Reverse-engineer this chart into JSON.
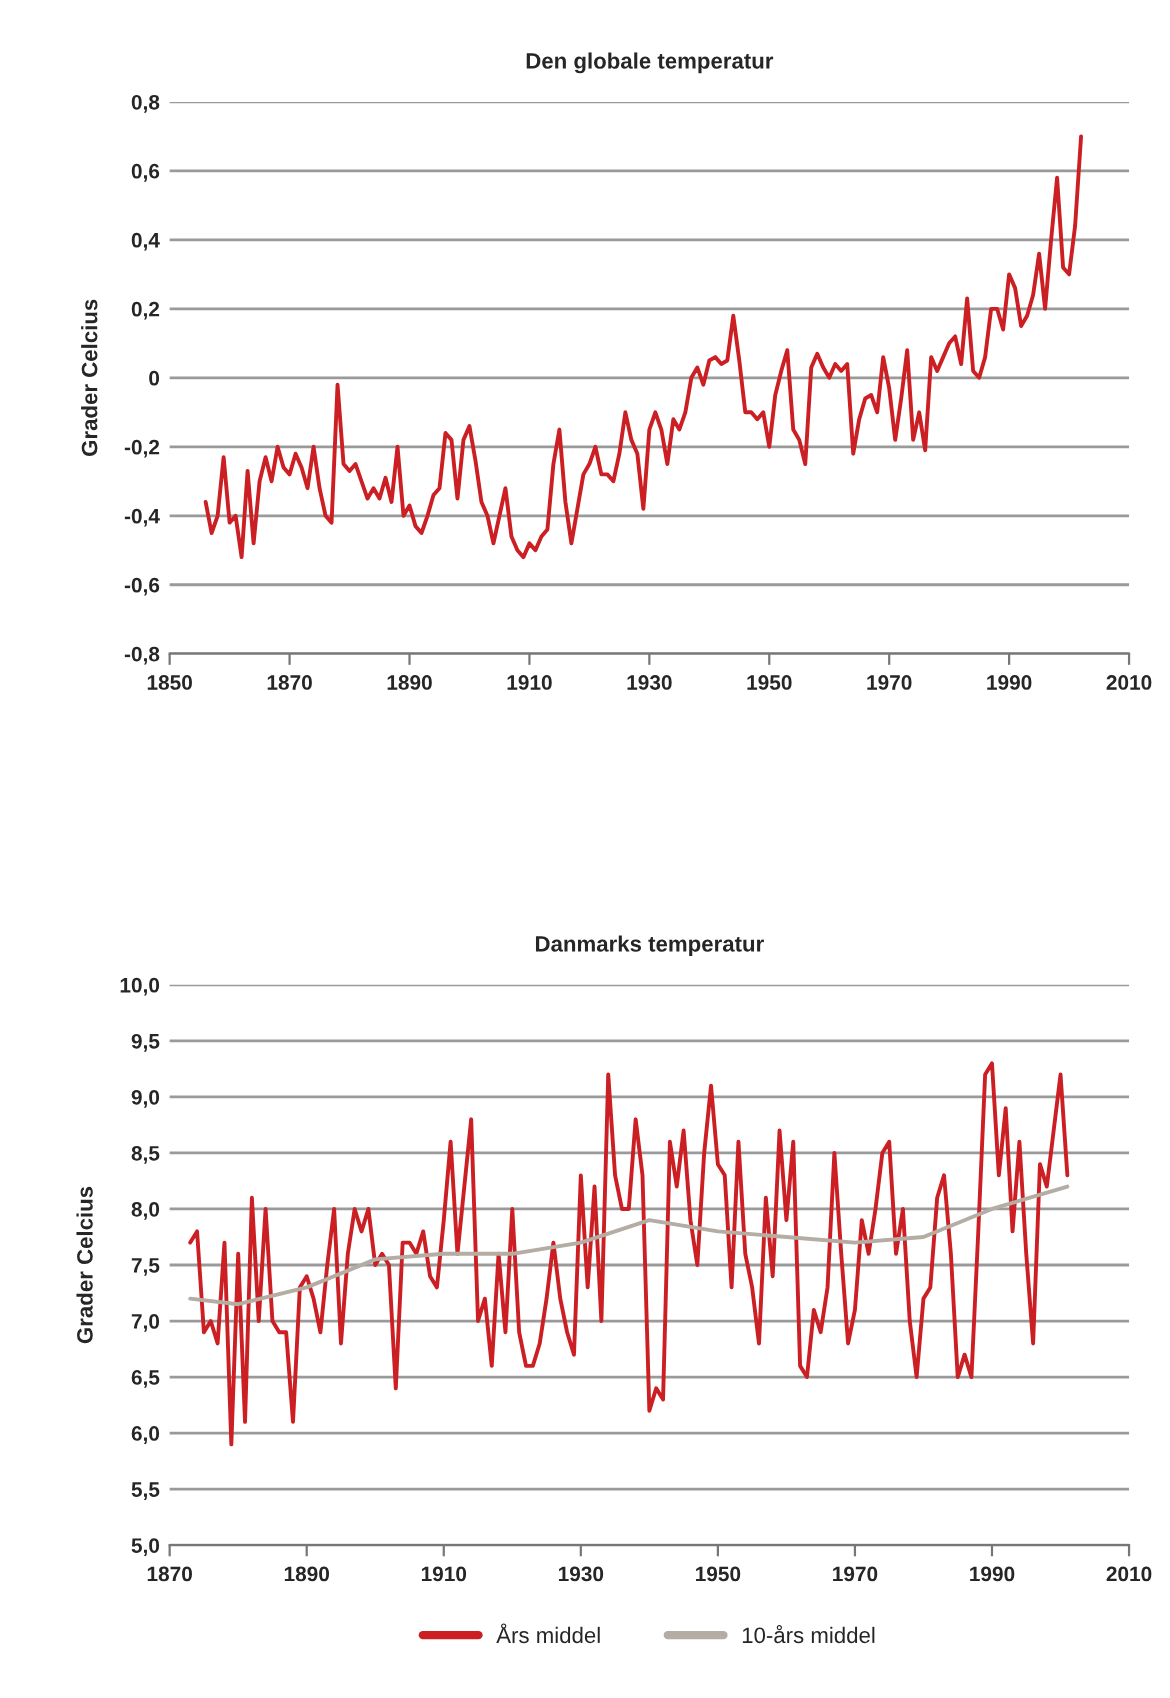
{
  "chart_data": [
    {
      "type": "line",
      "title": "Den globale temperatur",
      "ylabel": "Grader Celcius",
      "grid": "y",
      "line_style": "solid",
      "marker": "none",
      "xlim": [
        1850,
        2010
      ],
      "xticks": [
        1850,
        1870,
        1890,
        1910,
        1930,
        1950,
        1970,
        1990,
        2010
      ],
      "ylim": [
        -0.8,
        0.8
      ],
      "yticks": [
        {
          "value": -0.8,
          "label": "-0,8"
        },
        {
          "value": -0.6,
          "label": "-0,6"
        },
        {
          "value": -0.4,
          "label": "-0,4"
        },
        {
          "value": -0.2,
          "label": "-0,2"
        },
        0,
        {
          "value": 0.2,
          "label": "0,2"
        },
        {
          "value": 0.4,
          "label": "0,4"
        },
        {
          "value": 0.6,
          "label": "0,6"
        },
        {
          "value": 0.8,
          "label": "0,8"
        }
      ],
      "series": [
        {
          "color": "#cc1f24",
          "x": [
            1856,
            1857,
            1858,
            1859,
            1860,
            1861,
            1862,
            1863,
            1864,
            1865,
            1866,
            1867,
            1868,
            1869,
            1870,
            1871,
            1872,
            1873,
            1874,
            1875,
            1876,
            1877,
            1878,
            1879,
            1880,
            1881,
            1882,
            1883,
            1884,
            1885,
            1886,
            1887,
            1888,
            1889,
            1890,
            1891,
            1892,
            1893,
            1894,
            1895,
            1896,
            1897,
            1898,
            1899,
            1900,
            1901,
            1902,
            1903,
            1904,
            1905,
            1906,
            1907,
            1908,
            1909,
            1910,
            1911,
            1912,
            1913,
            1914,
            1915,
            1916,
            1917,
            1918,
            1919,
            1920,
            1921,
            1922,
            1923,
            1924,
            1925,
            1926,
            1927,
            1928,
            1929,
            1930,
            1931,
            1932,
            1933,
            1934,
            1935,
            1936,
            1937,
            1938,
            1939,
            1940,
            1941,
            1942,
            1943,
            1944,
            1945,
            1946,
            1947,
            1948,
            1949,
            1950,
            1951,
            1952,
            1953,
            1954,
            1955,
            1956,
            1957,
            1958,
            1959,
            1960,
            1961,
            1962,
            1963,
            1964,
            1965,
            1966,
            1967,
            1968,
            1969,
            1970,
            1971,
            1972,
            1973,
            1974,
            1975,
            1976,
            1977,
            1978,
            1979,
            1980,
            1981,
            1982,
            1983,
            1984,
            1985,
            1986,
            1987,
            1988,
            1989,
            1990,
            1991,
            1992,
            1993,
            1994,
            1995,
            1996,
            1997,
            1998,
            1999,
            2000,
            2001,
            2002
          ],
          "values": [
            -0.36,
            -0.45,
            -0.4,
            -0.23,
            -0.42,
            -0.4,
            -0.52,
            -0.27,
            -0.48,
            -0.3,
            -0.23,
            -0.3,
            -0.2,
            -0.26,
            -0.28,
            -0.22,
            -0.26,
            -0.32,
            -0.2,
            -0.32,
            -0.4,
            -0.42,
            -0.02,
            -0.25,
            -0.27,
            -0.25,
            -0.3,
            -0.35,
            -0.32,
            -0.35,
            -0.29,
            -0.36,
            -0.2,
            -0.4,
            -0.37,
            -0.43,
            -0.45,
            -0.4,
            -0.34,
            -0.32,
            -0.16,
            -0.18,
            -0.35,
            -0.18,
            -0.14,
            -0.24,
            -0.36,
            -0.4,
            -0.48,
            -0.4,
            -0.32,
            -0.46,
            -0.5,
            -0.52,
            -0.48,
            -0.5,
            -0.46,
            -0.44,
            -0.25,
            -0.15,
            -0.36,
            -0.48,
            -0.38,
            -0.28,
            -0.25,
            -0.2,
            -0.28,
            -0.28,
            -0.3,
            -0.22,
            -0.1,
            -0.18,
            -0.22,
            -0.38,
            -0.15,
            -0.1,
            -0.15,
            -0.25,
            -0.12,
            -0.15,
            -0.1,
            0.0,
            0.03,
            -0.02,
            0.05,
            0.06,
            0.04,
            0.05,
            0.18,
            0.05,
            -0.1,
            -0.1,
            -0.12,
            -0.1,
            -0.2,
            -0.05,
            0.02,
            0.08,
            -0.15,
            -0.18,
            -0.25,
            0.03,
            0.07,
            0.03,
            0.0,
            0.04,
            0.02,
            0.04,
            -0.22,
            -0.12,
            -0.06,
            -0.05,
            -0.1,
            0.06,
            -0.03,
            -0.18,
            -0.06,
            0.08,
            -0.18,
            -0.1,
            -0.21,
            0.06,
            0.02,
            0.06,
            0.1,
            0.12,
            0.04,
            0.23,
            0.02,
            0.0,
            0.06,
            0.2,
            0.2,
            0.14,
            0.3,
            0.26,
            0.15,
            0.18,
            0.24,
            0.36,
            0.2,
            0.4,
            0.58,
            0.32,
            0.3,
            0.44,
            0.7
          ]
        }
      ]
    },
    {
      "type": "line",
      "title": "Danmarks temperatur",
      "ylabel": "Grader Celcius",
      "grid": "y",
      "line_style": "solid",
      "marker": "none",
      "legend": "bottom",
      "xlim": [
        1870,
        2010
      ],
      "xticks": [
        1870,
        1890,
        1910,
        1930,
        1950,
        1970,
        1990,
        2010
      ],
      "ylim": [
        5.0,
        10.0
      ],
      "yticks": [
        {
          "value": 5.0,
          "label": "5,0"
        },
        {
          "value": 5.5,
          "label": "5,5"
        },
        {
          "value": 6.0,
          "label": "6,0"
        },
        {
          "value": 6.5,
          "label": "6,5"
        },
        {
          "value": 7.0,
          "label": "7,0"
        },
        {
          "value": 7.5,
          "label": "7,5"
        },
        {
          "value": 8.0,
          "label": "8,0"
        },
        {
          "value": 8.5,
          "label": "8,5"
        },
        {
          "value": 9.0,
          "label": "9,0"
        },
        {
          "value": 9.5,
          "label": "9,5"
        },
        {
          "value": 10.0,
          "label": "10,0"
        }
      ],
      "series": [
        {
          "name": "Års middel",
          "color": "#cc1f24",
          "x": [
            1873,
            1874,
            1875,
            1876,
            1877,
            1878,
            1879,
            1880,
            1881,
            1882,
            1883,
            1884,
            1885,
            1886,
            1887,
            1888,
            1889,
            1890,
            1891,
            1892,
            1893,
            1894,
            1895,
            1896,
            1897,
            1898,
            1899,
            1900,
            1901,
            1902,
            1903,
            1904,
            1905,
            1906,
            1907,
            1908,
            1909,
            1910,
            1911,
            1912,
            1913,
            1914,
            1915,
            1916,
            1917,
            1918,
            1919,
            1920,
            1921,
            1922,
            1923,
            1924,
            1925,
            1926,
            1927,
            1928,
            1929,
            1930,
            1931,
            1932,
            1933,
            1934,
            1935,
            1936,
            1937,
            1938,
            1939,
            1940,
            1941,
            1942,
            1943,
            1944,
            1945,
            1946,
            1947,
            1948,
            1949,
            1950,
            1951,
            1952,
            1953,
            1954,
            1955,
            1956,
            1957,
            1958,
            1959,
            1960,
            1961,
            1962,
            1963,
            1964,
            1965,
            1966,
            1967,
            1968,
            1969,
            1970,
            1971,
            1972,
            1973,
            1974,
            1975,
            1976,
            1977,
            1978,
            1979,
            1980,
            1981,
            1982,
            1983,
            1984,
            1985,
            1986,
            1987,
            1988,
            1989,
            1990,
            1991,
            1992,
            1993,
            1994,
            1995,
            1996,
            1997,
            1998,
            1999,
            2000,
            2001
          ],
          "values": [
            7.7,
            7.8,
            6.9,
            7.0,
            6.8,
            7.7,
            5.9,
            7.6,
            6.1,
            8.1,
            7.0,
            8.0,
            7.0,
            6.9,
            6.9,
            6.1,
            7.3,
            7.4,
            7.2,
            6.9,
            7.5,
            8.0,
            6.8,
            7.6,
            8.0,
            7.8,
            8.0,
            7.5,
            7.6,
            7.5,
            6.4,
            7.7,
            7.7,
            7.6,
            7.8,
            7.4,
            7.3,
            7.9,
            8.6,
            7.6,
            8.2,
            8.8,
            7.0,
            7.2,
            6.6,
            7.6,
            6.9,
            8.0,
            6.9,
            6.6,
            6.6,
            6.8,
            7.2,
            7.7,
            7.2,
            6.9,
            6.7,
            8.3,
            7.3,
            8.2,
            7.0,
            9.2,
            8.3,
            8.0,
            8.0,
            8.8,
            8.3,
            6.2,
            6.4,
            6.3,
            8.6,
            8.2,
            8.7,
            7.9,
            7.5,
            8.5,
            9.1,
            8.4,
            8.3,
            7.3,
            8.6,
            7.6,
            7.3,
            6.8,
            8.1,
            7.4,
            8.7,
            7.9,
            8.6,
            6.6,
            6.5,
            7.1,
            6.9,
            7.3,
            8.5,
            7.6,
            6.8,
            7.1,
            7.9,
            7.6,
            8.0,
            8.5,
            8.6,
            7.6,
            8.0,
            7.0,
            6.5,
            7.2,
            7.3,
            8.1,
            8.3,
            7.6,
            6.5,
            6.7,
            6.5,
            7.8,
            9.2,
            9.3,
            8.3,
            8.9,
            7.8,
            8.6,
            7.6,
            6.8,
            8.4,
            8.2,
            8.7,
            9.2,
            8.3
          ]
        },
        {
          "name": "10-års middel",
          "color": "#b5aca3",
          "x": [
            1873,
            1880,
            1890,
            1900,
            1910,
            1920,
            1930,
            1940,
            1950,
            1960,
            1970,
            1980,
            1990,
            2001
          ],
          "values": [
            7.2,
            7.15,
            7.3,
            7.55,
            7.6,
            7.6,
            7.7,
            7.9,
            7.8,
            7.75,
            7.7,
            7.75,
            8.0,
            8.2
          ]
        }
      ]
    }
  ]
}
